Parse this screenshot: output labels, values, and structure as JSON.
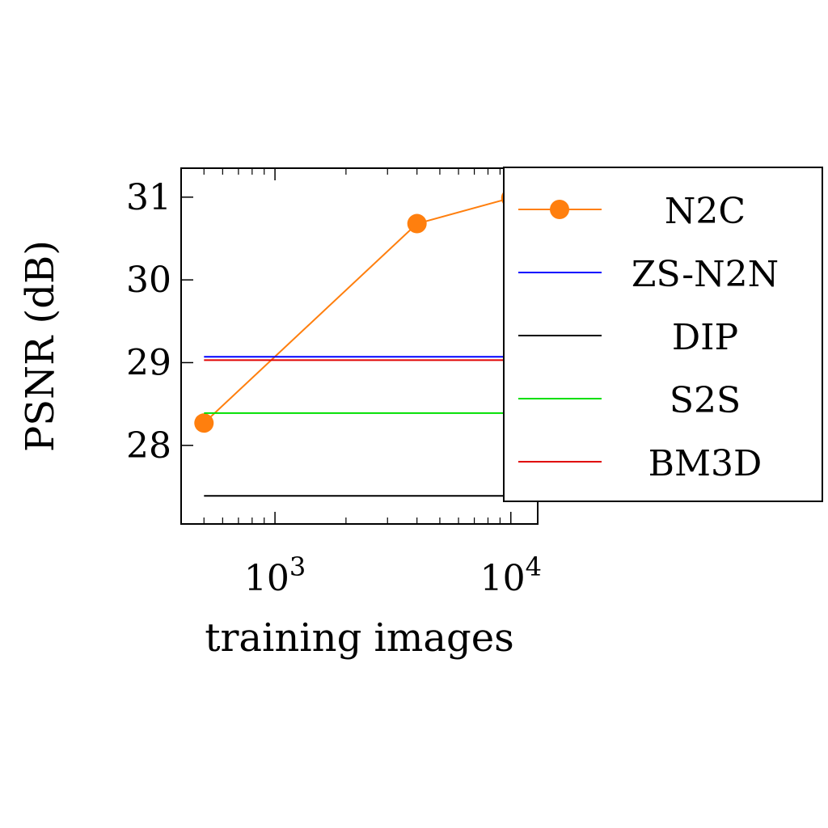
{
  "chart_data": {
    "type": "line",
    "xlabel": "training images",
    "ylabel": "PSNR (dB)",
    "x_scale": "log",
    "xlim": [
      400,
      13000
    ],
    "ylim": [
      27.05,
      31.35
    ],
    "x_ticks": [
      {
        "value": 1000,
        "base": "10",
        "exp": "3"
      },
      {
        "value": 10000,
        "base": "10",
        "exp": "4"
      }
    ],
    "y_ticks": [
      28,
      29,
      30,
      31
    ],
    "y_tick_labels": [
      "28",
      "29",
      "30",
      "31"
    ],
    "series": [
      {
        "name": "N2C",
        "color": "#ff7f0e",
        "marker": "circle",
        "x": [
          500,
          4000,
          10000
        ],
        "y": [
          28.27,
          30.68,
          30.99
        ]
      },
      {
        "name": "ZS-N2N",
        "color": "#0000ff",
        "marker": "none",
        "x": [
          500,
          10000
        ],
        "y": [
          29.07,
          29.07
        ]
      },
      {
        "name": "DIP",
        "color": "#000000",
        "marker": "none",
        "x": [
          500,
          10000
        ],
        "y": [
          27.39,
          27.39
        ]
      },
      {
        "name": "S2S",
        "color": "#00e000",
        "marker": "none",
        "x": [
          500,
          10000
        ],
        "y": [
          28.39,
          28.39
        ]
      },
      {
        "name": "BM3D",
        "color": "#e00000",
        "marker": "none",
        "x": [
          500,
          10000
        ],
        "y": [
          29.03,
          29.03
        ]
      }
    ],
    "legend_position": "right",
    "grid": false
  }
}
